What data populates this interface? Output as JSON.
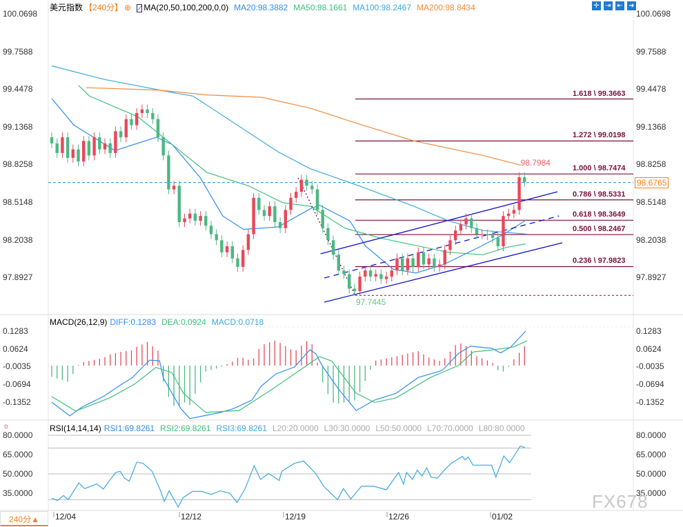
{
  "header": {
    "symbol": "美元指数",
    "period": "【240分】",
    "indicator": "MA(20,50,100,200,0,0)",
    "ma20": "MA20:98.3882",
    "ma50": "MA50:98.1661",
    "ma100": "MA100:98.2467",
    "ma200": "MA200:98.8434"
  },
  "colors": {
    "up": "#e8485a",
    "down": "#4cb782",
    "ma20": "#2f8cf0",
    "ma50": "#3cc07a",
    "ma100": "#3aa8e0",
    "ma200": "#f5893a",
    "fib": "#7a0f3a",
    "channel": "#1010d0"
  },
  "toolbar_icons": [
    "crosshair-icon",
    "zoom-in-icon",
    "zoom-out-icon",
    "move-right-icon"
  ],
  "macd": {
    "title": "MACD(26,12,9)",
    "diff": "DIFF:0.1283",
    "dea": "DEA:0.0924",
    "macd": "MACD:0.0718"
  },
  "rsi": {
    "title": "RSI(14,14,14)",
    "rsi1": "RSI1:69.8261",
    "rsi2": "RSI2:69.8261",
    "rsi3": "RSI3:69.8261",
    "l20": "L20:20.0000",
    "l30": "L30:30.0000",
    "l50": "L50:50.0000",
    "l70": "L70:70.0000",
    "l80": "L80:80.0000"
  },
  "period_button": "240分▲",
  "watermark": "FX678",
  "chart_data": [
    {
      "type": "candlestick",
      "yticks": [
        "100.0698",
        "99.7588",
        "99.4478",
        "99.1368",
        "98.8258",
        "98.5148",
        "98.2038",
        "97.8927"
      ],
      "xticks": [
        "12/04",
        "12/12",
        "12/19",
        "12/26",
        "01/02"
      ],
      "closes": [
        99.0,
        98.92,
        99.05,
        98.88,
        98.95,
        98.85,
        99.02,
        98.9,
        99.05,
        98.95,
        99.0,
        98.92,
        99.1,
        99.05,
        99.2,
        99.15,
        99.25,
        99.28,
        99.25,
        99.2,
        99.05,
        98.9,
        98.62,
        98.65,
        98.35,
        98.38,
        98.42,
        98.36,
        98.4,
        98.32,
        98.25,
        98.2,
        98.1,
        98.15,
        98.05,
        97.98,
        98.12,
        98.25,
        98.55,
        98.45,
        98.4,
        98.48,
        98.35,
        98.3,
        98.45,
        98.55,
        98.6,
        98.7,
        98.65,
        98.62,
        98.45,
        98.3,
        98.2,
        98.08,
        97.95,
        97.92,
        97.8,
        97.78,
        97.9,
        97.95,
        97.9,
        97.92,
        97.88,
        97.9,
        97.95,
        98.05,
        97.95,
        98.05,
        97.98,
        98.1,
        98.0,
        98.05,
        97.98,
        98.0,
        98.12,
        98.2,
        98.28,
        98.33,
        98.38,
        98.3,
        98.25,
        98.25,
        98.24,
        98.22,
        98.15,
        98.4,
        98.42,
        98.45,
        98.72,
        98.68
      ],
      "ma": {
        "MA20": [
          [
            0,
            99.37
          ],
          [
            4.2,
            99.15
          ],
          [
            11.9,
            98.94
          ],
          [
            19.7,
            99.05
          ],
          [
            22.7,
            98.99
          ],
          [
            27.9,
            98.72
          ],
          [
            32.2,
            98.4
          ],
          [
            36.1,
            98.29
          ],
          [
            42.6,
            98.31
          ],
          [
            48.7,
            98.46
          ],
          [
            50.4,
            98.49
          ],
          [
            56.1,
            98.36
          ],
          [
            59.1,
            98.15
          ],
          [
            64.3,
            97.96
          ],
          [
            68.6,
            97.93
          ],
          [
            73.8,
            98.0
          ],
          [
            80.8,
            98.15
          ],
          [
            85.1,
            98.25
          ],
          [
            89.4,
            98.37
          ]
        ],
        "MA50": [
          [
            5,
            99.48
          ],
          [
            7.1,
            99.39
          ],
          [
            16.2,
            99.22
          ],
          [
            22.7,
            98.99
          ],
          [
            29.2,
            98.76
          ],
          [
            37,
            98.65
          ],
          [
            43.5,
            98.51
          ],
          [
            48.7,
            98.48
          ],
          [
            55.2,
            98.3
          ],
          [
            61.7,
            98.22
          ],
          [
            68.2,
            98.16
          ],
          [
            74.7,
            98.1
          ],
          [
            81.2,
            98.08
          ],
          [
            85.5,
            98.14
          ],
          [
            89.2,
            98.17
          ]
        ],
        "MA100": [
          [
            0,
            99.64
          ],
          [
            9.7,
            99.53
          ],
          [
            22.7,
            99.42
          ],
          [
            26.6,
            99.39
          ],
          [
            42.6,
            98.93
          ],
          [
            48.7,
            98.79
          ],
          [
            57.8,
            98.65
          ],
          [
            68.2,
            98.48
          ],
          [
            74.7,
            98.36
          ],
          [
            81.2,
            98.28
          ],
          [
            89.6,
            98.25
          ]
        ],
        "MA200": [
          [
            6.5,
            99.46
          ],
          [
            20.1,
            99.44
          ],
          [
            29.2,
            99.4
          ],
          [
            39.6,
            99.38
          ],
          [
            48.7,
            99.29
          ],
          [
            57.8,
            99.16
          ],
          [
            68.2,
            99.02
          ],
          [
            81.2,
            98.9
          ],
          [
            88.3,
            98.82
          ]
        ]
      },
      "fibonacci": [
        {
          "label": "1.618 \\ 99.3663",
          "value": 99.3663
        },
        {
          "label": "1.272 \\ 99.0198",
          "value": 99.0198
        },
        {
          "label": "1.000 \\ 98.7474",
          "value": 98.7474
        },
        {
          "label": "0.786 \\ 98.5331",
          "value": 98.5331
        },
        {
          "label": "0.618 \\ 98.3649",
          "value": 98.3649
        },
        {
          "label": "0.500 \\ 98.2467",
          "value": 98.2467
        },
        {
          "label": "0.236 \\ 97.9823",
          "value": 97.9823
        }
      ],
      "fib_base": 97.7445,
      "channel": [
        {
          "style": "solid",
          "from": [
            51.3,
            97.689
          ],
          "to": [
            96.1,
            98.179
          ]
        },
        {
          "style": "solid",
          "from": [
            50.6,
            98.088
          ],
          "to": [
            95.2,
            98.6
          ]
        },
        {
          "style": "dashed",
          "from": [
            51.3,
            97.888
          ],
          "to": [
            95.5,
            98.401
          ]
        }
      ],
      "swing_line": {
        "from": [
          46.4,
          98.714
        ],
        "to": [
          57.1,
          97.745
        ]
      },
      "annotations": {
        "high": "98.7984",
        "high_value": 98.7984,
        "high_bar": 88,
        "low": "97.7445",
        "low_value": 97.7445,
        "low_bar": 57
      },
      "current_price": {
        "label": "98.6765",
        "value": 98.6765
      }
    },
    {
      "type": "macd",
      "yticks": [
        "0.1283",
        "0.0624",
        "-0.0035",
        "-0.0694",
        "-0.1352"
      ],
      "diff": [
        [
          0,
          -0.136
        ],
        [
          3.4,
          -0.187
        ],
        [
          5.7,
          -0.154
        ],
        [
          9.7,
          -0.115
        ],
        [
          13.2,
          -0.069
        ],
        [
          15.1,
          -0.046
        ],
        [
          18.4,
          0.02
        ],
        [
          20.3,
          0.018
        ],
        [
          21,
          -0.046
        ],
        [
          24.3,
          -0.16
        ],
        [
          26,
          -0.197
        ],
        [
          31.8,
          -0.174
        ],
        [
          34.2,
          -0.16
        ],
        [
          37.7,
          -0.128
        ],
        [
          39.4,
          -0.077
        ],
        [
          42.2,
          -0.031
        ],
        [
          45.7,
          -0.005
        ],
        [
          48.6,
          0.059
        ],
        [
          49.7,
          0.044
        ],
        [
          50.9,
          0
        ],
        [
          53.9,
          -0.085
        ],
        [
          57.3,
          -0.167
        ],
        [
          60.8,
          -0.128
        ],
        [
          64.8,
          -0.103
        ],
        [
          69,
          -0.044
        ],
        [
          73.5,
          -0.018
        ],
        [
          76.5,
          0.044
        ],
        [
          78.8,
          0.072
        ],
        [
          82.9,
          0.064
        ],
        [
          84.5,
          0.047
        ],
        [
          86.4,
          0.069
        ],
        [
          89.2,
          0.128
        ]
      ],
      "dea": [
        [
          0,
          -0.115
        ],
        [
          4.5,
          -0.169
        ],
        [
          10.9,
          -0.12
        ],
        [
          15.6,
          -0.069
        ],
        [
          19.6,
          -0.007
        ],
        [
          22.6,
          -0.026
        ],
        [
          24.8,
          -0.103
        ],
        [
          28.96,
          -0.174
        ],
        [
          35.3,
          -0.167
        ],
        [
          41,
          -0.094
        ],
        [
          45.7,
          -0.031
        ],
        [
          50.4,
          0.033
        ],
        [
          52.7,
          0.017
        ],
        [
          57.3,
          -0.103
        ],
        [
          60.8,
          -0.137
        ],
        [
          64.8,
          -0.12
        ],
        [
          71.3,
          -0.044
        ],
        [
          76.5,
          0
        ],
        [
          79.4,
          0.051
        ],
        [
          82.9,
          0.058
        ],
        [
          86.9,
          0.069
        ],
        [
          89.5,
          0.092
        ]
      ]
    },
    {
      "type": "line",
      "yticks": [
        "80.0000",
        "65.0000",
        "50.0000",
        "35.0000"
      ],
      "levels": [
        80,
        70,
        50,
        30
      ],
      "rsi": [
        [
          0,
          31.1
        ],
        [
          1.1,
          29.3
        ],
        [
          2.2,
          33.2
        ],
        [
          3.1,
          29.9
        ],
        [
          5.1,
          43
        ],
        [
          6.2,
          38.6
        ],
        [
          8.5,
          42.1
        ],
        [
          9.7,
          38.2
        ],
        [
          12,
          51
        ],
        [
          12.9,
          52
        ],
        [
          13.7,
          46.6
        ],
        [
          14.6,
          44.3
        ],
        [
          16,
          59.1
        ],
        [
          17.2,
          58.2
        ],
        [
          18.9,
          52
        ],
        [
          20.4,
          37.7
        ],
        [
          21.2,
          28.7
        ],
        [
          22.1,
          36.8
        ],
        [
          23.8,
          24.3
        ],
        [
          24.7,
          31.4
        ],
        [
          26.5,
          36.4
        ],
        [
          28.2,
          36.4
        ],
        [
          30,
          34.1
        ],
        [
          31.7,
          36.8
        ],
        [
          33.5,
          35
        ],
        [
          34.9,
          27.9
        ],
        [
          36.4,
          38.6
        ],
        [
          38.1,
          56.4
        ],
        [
          39.3,
          45.7
        ],
        [
          40.8,
          50.2
        ],
        [
          41.6,
          48.4
        ],
        [
          42.8,
          44.8
        ],
        [
          43.3,
          52
        ],
        [
          45.7,
          58.2
        ],
        [
          47.4,
          60
        ],
        [
          48.6,
          55
        ],
        [
          49.7,
          50.2
        ],
        [
          51.2,
          40.4
        ],
        [
          52.3,
          35.9
        ],
        [
          53.8,
          30
        ],
        [
          54.9,
          38.6
        ],
        [
          56.3,
          30.5
        ],
        [
          58.3,
          40.4
        ],
        [
          60.6,
          40.4
        ],
        [
          63,
          37.7
        ],
        [
          65.3,
          51.1
        ],
        [
          66.2,
          42.1
        ],
        [
          66.8,
          51.1
        ],
        [
          67.9,
          45.7
        ],
        [
          68.8,
          52.9
        ],
        [
          69.7,
          48.4
        ],
        [
          70.6,
          54.7
        ],
        [
          71.4,
          47.5
        ],
        [
          72.6,
          46.6
        ],
        [
          74.1,
          53.8
        ],
        [
          75.2,
          58.2
        ],
        [
          77.3,
          63.6
        ],
        [
          77.8,
          60.9
        ],
        [
          78.4,
          63.2
        ],
        [
          79.3,
          56.8
        ],
        [
          82.8,
          56.8
        ],
        [
          83.6,
          47.5
        ],
        [
          85.1,
          63.9
        ],
        [
          86.2,
          58.6
        ],
        [
          88.2,
          71.6
        ],
        [
          89.1,
          70.3
        ]
      ]
    }
  ]
}
